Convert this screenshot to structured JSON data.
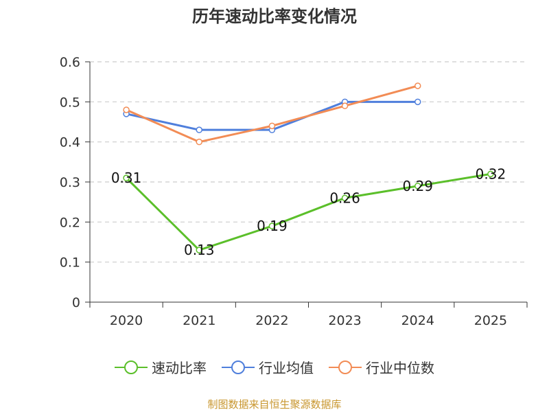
{
  "chart_data": {
    "type": "line",
    "title": "历年速动比率变化情况",
    "categories": [
      "2020",
      "2021",
      "2022",
      "2023",
      "2024",
      "2025"
    ],
    "yticks": [
      "0",
      "0.1",
      "0.2",
      "0.3",
      "0.4",
      "0.5",
      "0.6"
    ],
    "ylim": [
      0,
      0.6
    ],
    "grid": true,
    "legend_position": "bottom",
    "series": [
      {
        "name": "速动比率",
        "color": "#5bbf2a",
        "values": [
          0.31,
          0.13,
          0.19,
          0.26,
          0.29,
          0.32
        ],
        "labels": [
          "0.31",
          "0.13",
          "0.19",
          "0.26",
          "0.29",
          "0.32"
        ]
      },
      {
        "name": "行业均值",
        "color": "#4f7fdc",
        "values": [
          0.47,
          0.43,
          0.43,
          0.5,
          0.5,
          null
        ]
      },
      {
        "name": "行业中位数",
        "color": "#f28c55",
        "values": [
          0.48,
          0.4,
          0.44,
          0.49,
          0.54,
          null
        ]
      }
    ]
  },
  "source": "制图数据来自恒生聚源数据库"
}
